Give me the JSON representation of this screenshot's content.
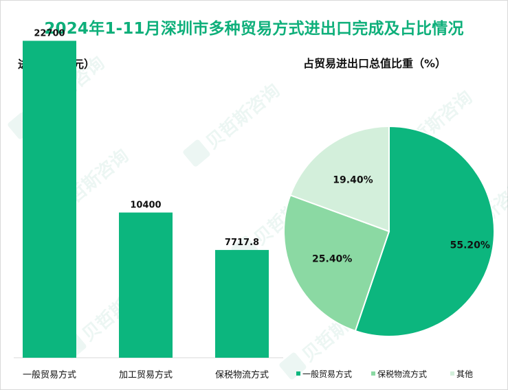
{
  "title": "2024年1-11月深圳市多种贸易方式进出口完成及占比情况",
  "colors": {
    "title": "#0eaf7a",
    "bar": "#0cb67e",
    "pie": [
      "#0cb67e",
      "#8bd9a3",
      "#d3efdb"
    ]
  },
  "watermark": "贝哲斯咨询",
  "chart_data": [
    {
      "type": "bar",
      "subtitle": "进出口（亿元）",
      "categories": [
        "一般贸易方式",
        "加工贸易方式",
        "保税物流方式"
      ],
      "values": [
        22700,
        10400,
        7717.8
      ],
      "value_labels": [
        "22700",
        "10400",
        "7717.8"
      ],
      "ylim": [
        0,
        24000
      ],
      "grid": false
    },
    {
      "type": "pie",
      "subtitle": "占贸易进出口总值比重（%）",
      "labels": [
        "一般贸易方式",
        "保税物流方式",
        "其他"
      ],
      "values": [
        55.2,
        25.4,
        19.4
      ],
      "value_labels": [
        "55.20%",
        "25.40%",
        "19.40%"
      ],
      "legend": "bottom"
    }
  ]
}
